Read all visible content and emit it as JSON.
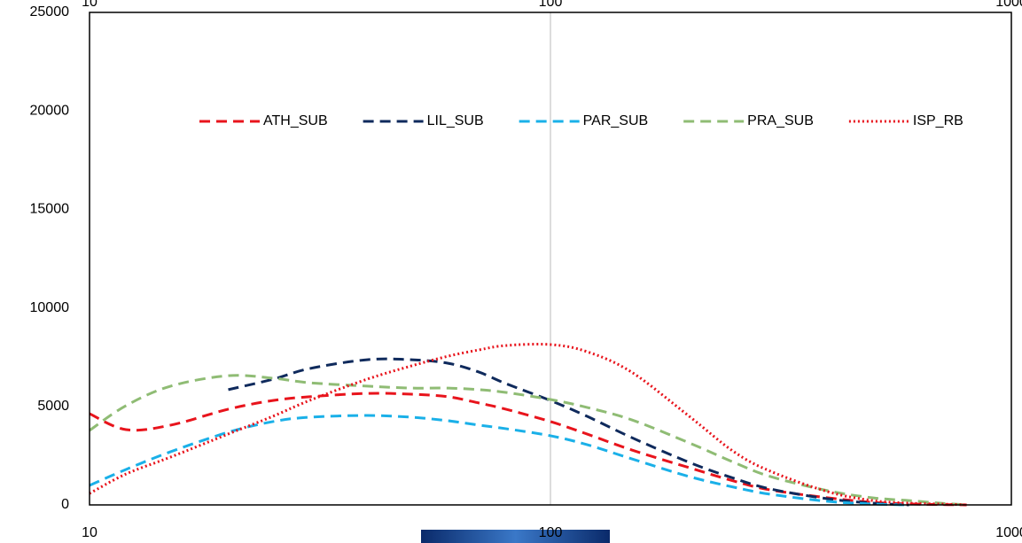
{
  "chart_data": {
    "type": "line",
    "x": [
      10,
      12,
      15,
      20,
      25,
      30,
      40,
      50,
      60,
      70,
      80,
      100,
      120,
      150,
      200,
      250,
      300,
      400,
      500,
      600,
      700,
      800
    ],
    "xlim": [
      10,
      1000
    ],
    "xticks": [
      10,
      100,
      1000
    ],
    "xscale": "log",
    "ylim": [
      0,
      25000
    ],
    "yticks": [
      0,
      5000,
      10000,
      15000,
      20000,
      25000
    ],
    "grid": "x",
    "legend": "top",
    "series": [
      {
        "name": "ATH_SUB",
        "color": "#e8141c",
        "dash": "dashed",
        "values": [
          4630,
          3820,
          4050,
          4860,
          5300,
          5490,
          5660,
          5620,
          5490,
          5170,
          4860,
          4230,
          3600,
          2790,
          1890,
          1210,
          760,
          360,
          130,
          50,
          20,
          0
        ]
      },
      {
        "name": "LIL_SUB",
        "color": "#0f2a5c",
        "dash": "dashed",
        "values": [
          null,
          null,
          null,
          5850,
          6380,
          6920,
          7370,
          7370,
          7190,
          6740,
          6160,
          5300,
          4500,
          3420,
          2160,
          1350,
          810,
          310,
          90,
          0,
          null,
          null
        ]
      },
      {
        "name": "PAR_SUB",
        "color": "#1ab0e8",
        "dash": "dashed",
        "values": [
          990,
          1800,
          2700,
          3690,
          4230,
          4450,
          4540,
          4450,
          4270,
          4050,
          3870,
          3510,
          3060,
          2340,
          1440,
          900,
          540,
          180,
          45,
          0,
          null,
          null
        ]
      },
      {
        "name": "PRA_SUB",
        "color": "#8fbc74",
        "dash": "dashed",
        "values": [
          3780,
          5040,
          6030,
          6560,
          6430,
          6200,
          6030,
          5930,
          5930,
          5850,
          5710,
          5350,
          4950,
          4320,
          3150,
          2160,
          1440,
          720,
          360,
          220,
          90,
          0
        ]
      },
      {
        "name": "ISP_RB",
        "color": "#e8141c",
        "dash": "dotted",
        "values": [
          580,
          1570,
          2430,
          3600,
          4500,
          5300,
          6380,
          7060,
          7550,
          7870,
          8090,
          8140,
          7780,
          6740,
          4500,
          2700,
          1710,
          670,
          220,
          90,
          45,
          0
        ]
      }
    ]
  }
}
